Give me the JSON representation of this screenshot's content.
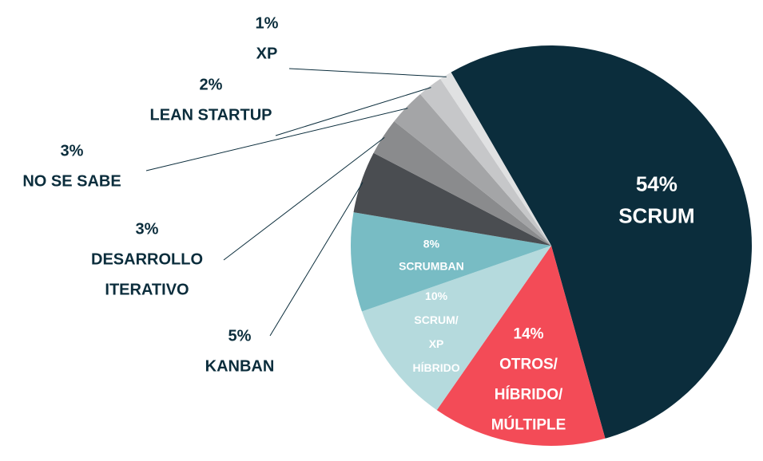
{
  "chart_data": {
    "type": "pie",
    "slices": [
      {
        "label": "SCRUM",
        "value": 54,
        "value_text": "54%",
        "color": "#0b2d3c",
        "label_color": "#ffffff",
        "label_position": "inside"
      },
      {
        "label": "OTROS/ HÍBRIDO/ MÚLTIPLE",
        "value": 14,
        "value_text": "14%",
        "color": "#f34b57",
        "label_color": "#ffffff",
        "label_position": "inside"
      },
      {
        "label": "SCRUM/ XP HÍBRIDO",
        "value": 10,
        "value_text": "10%",
        "color": "#b5dadd",
        "label_color": "#ffffff",
        "label_position": "inside"
      },
      {
        "label": "SCRUMBAN",
        "value": 8,
        "value_text": "8%",
        "color": "#78bcc4",
        "label_color": "#ffffff",
        "label_position": "inside"
      },
      {
        "label": "KANBAN",
        "value": 5,
        "value_text": "5%",
        "color": "#4a4d51",
        "label_color": "#0b2d3c",
        "label_position": "outside"
      },
      {
        "label": "DESARROLLO ITERATIVO",
        "value": 3,
        "value_text": "3%",
        "color": "#8a8b8d",
        "label_color": "#0b2d3c",
        "label_position": "outside"
      },
      {
        "label": "NO SE SABE",
        "value": 3,
        "value_text": "3%",
        "color": "#a4a5a7",
        "label_color": "#0b2d3c",
        "label_position": "outside"
      },
      {
        "label": "LEAN STARTUP",
        "value": 2,
        "value_text": "2%",
        "color": "#c6c7c9",
        "label_color": "#0b2d3c",
        "label_position": "outside"
      },
      {
        "label": "XP",
        "value": 1,
        "value_text": "1%",
        "color": "#e0e1e2",
        "label_color": "#0b2d3c",
        "label_position": "outside"
      }
    ]
  }
}
